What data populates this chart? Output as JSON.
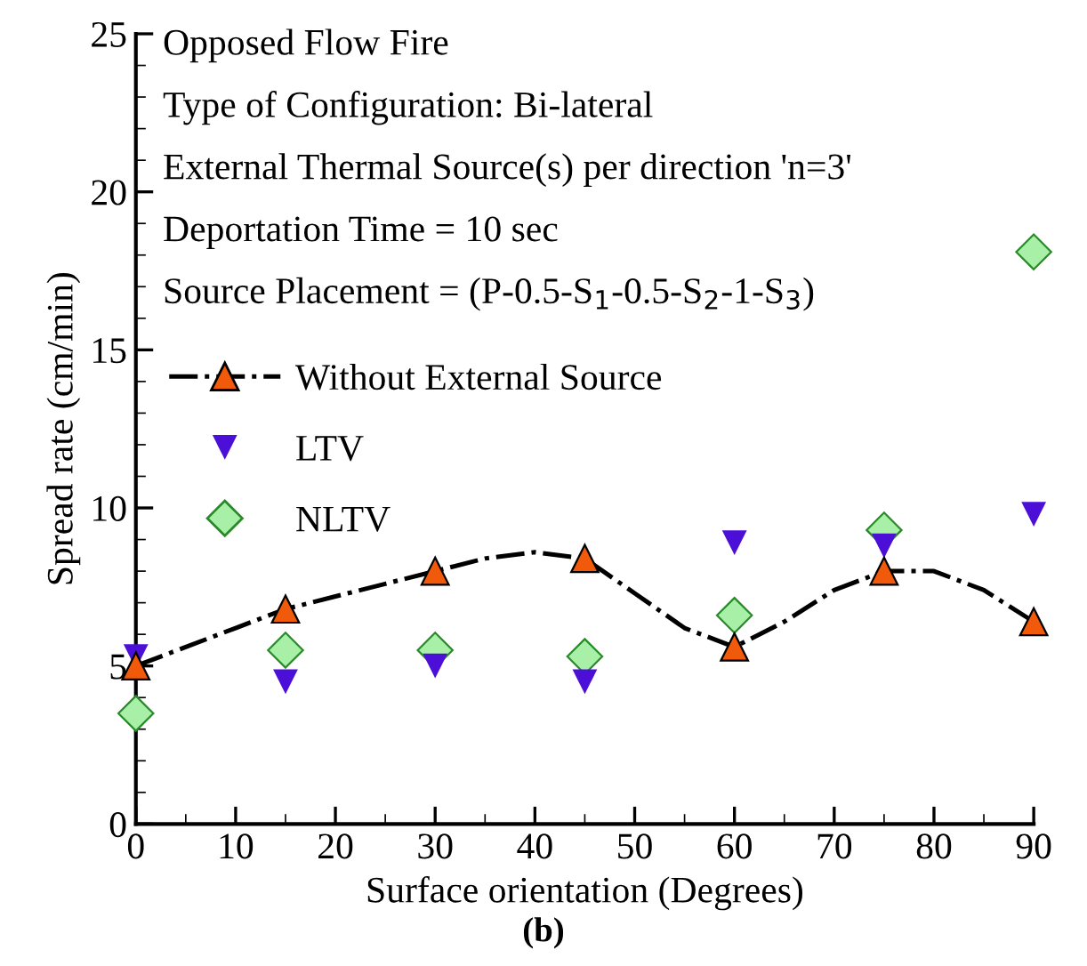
{
  "chart_data": {
    "type": "scatter",
    "xlabel": "Surface orientation (Degrees)",
    "ylabel": "Spread rate (cm/min)",
    "x": [
      0,
      15,
      30,
      45,
      60,
      75,
      90
    ],
    "series": [
      {
        "name": "Without External Source",
        "color": "#f05a0a",
        "marker": "triangle",
        "values": [
          5.0,
          6.8,
          8.0,
          8.4,
          5.6,
          8.0,
          6.4
        ]
      },
      {
        "type": "line",
        "color": "#000000",
        "marker": "none",
        "line_style": "dashdot",
        "x": [
          0,
          5,
          10,
          15,
          20,
          25,
          30,
          35,
          40,
          45,
          50,
          55,
          60,
          65,
          70,
          75,
          80,
          85,
          90
        ],
        "values": [
          5.0,
          5.6,
          6.2,
          6.8,
          7.2,
          7.6,
          8.0,
          8.4,
          8.6,
          8.4,
          7.3,
          6.2,
          5.6,
          6.4,
          7.4,
          8.0,
          8.0,
          7.4,
          6.4
        ]
      },
      {
        "name": "LTV",
        "color": "#4b0fd8",
        "marker": "triangle_down",
        "values": [
          5.3,
          4.5,
          5.0,
          4.5,
          8.9,
          8.8,
          9.8
        ]
      },
      {
        "name": "NLTV",
        "color": "#a8f0a8",
        "marker": "diamond",
        "values": [
          3.5,
          5.5,
          5.5,
          5.3,
          6.6,
          9.3,
          18.1
        ]
      }
    ],
    "xlim": [
      0,
      90
    ],
    "ylim": [
      0,
      25
    ],
    "xticks": [
      0,
      10,
      20,
      30,
      40,
      50,
      60,
      70,
      80,
      90
    ],
    "yticks": [
      0,
      5,
      10,
      15,
      20,
      25
    ],
    "grid": false,
    "legend": "left",
    "annotations": [
      "Opposed Flow Fire",
      "Type of Configuration: Bi-lateral",
      "External Thermal Source(s) per direction 'n=3'",
      "Deportation Time = 10 sec",
      "Source Placement = (P-0.5-S$_{1}$-0.5-S$_{2}$-1-S$_{3}$)",
      "(b)"
    ]
  }
}
